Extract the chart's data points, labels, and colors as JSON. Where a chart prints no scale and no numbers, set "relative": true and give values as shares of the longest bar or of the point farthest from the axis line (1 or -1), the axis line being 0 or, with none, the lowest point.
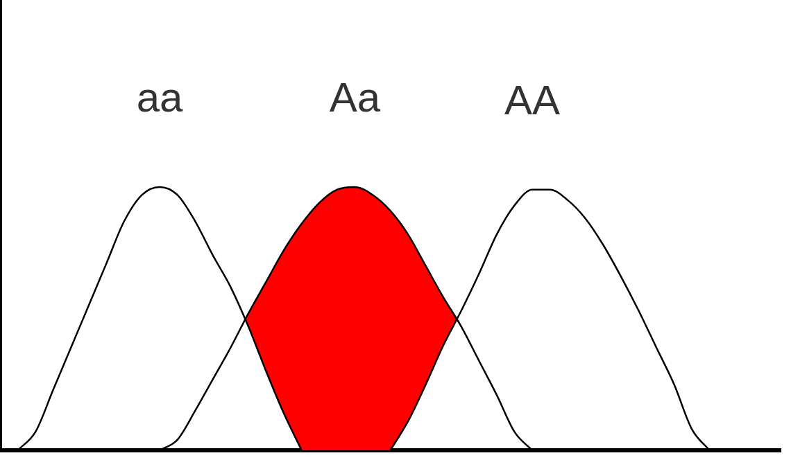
{
  "chart_data": {
    "type": "line",
    "relative": true,
    "legend": false,
    "grid": false,
    "marker": "none",
    "categories": [
      null,
      null,
      null,
      null,
      null,
      null,
      null,
      null,
      null,
      null,
      null,
      null,
      null,
      null,
      null,
      null,
      null,
      null,
      null,
      null,
      null,
      null,
      null,
      null,
      null,
      null,
      null,
      null,
      null,
      null,
      null,
      null,
      null,
      null,
      null,
      null,
      null,
      null,
      null,
      null,
      null,
      null,
      null,
      null,
      null
    ],
    "series": [
      {
        "name": "aa",
        "type": "line",
        "color": "#000000",
        "values": [
          null,
          0,
          0.07,
          0.23,
          0.39,
          0.55,
          0.71,
          0.87,
          0.97,
          1,
          0.97,
          0.87,
          0.74,
          0.62,
          0.47,
          0.3,
          0.14,
          0,
          null,
          null,
          null,
          null,
          null,
          null,
          null,
          null,
          null,
          null,
          null,
          null,
          null,
          null,
          null,
          null,
          null,
          null,
          null,
          null,
          null,
          null,
          null,
          null,
          null,
          null,
          null
        ]
      },
      {
        "name": "Aa",
        "type": "area",
        "color": "#ff0000",
        "values": [
          null,
          null,
          null,
          null,
          null,
          null,
          null,
          null,
          null,
          0,
          0.04,
          0.15,
          0.27,
          0.39,
          0.52,
          0.64,
          0.76,
          0.86,
          0.94,
          0.99,
          1,
          0.97,
          0.91,
          0.82,
          0.7,
          0.58,
          0.47,
          0.34,
          0.21,
          0.07,
          0,
          null,
          null,
          null,
          null,
          null,
          null,
          null,
          null,
          null,
          null,
          null,
          null,
          null,
          null
        ]
      },
      {
        "name": "AA",
        "type": "line",
        "color": "#000000",
        "values": [
          null,
          null,
          null,
          null,
          null,
          null,
          null,
          null,
          null,
          null,
          null,
          null,
          null,
          null,
          null,
          null,
          null,
          null,
          null,
          null,
          null,
          null,
          0,
          0.11,
          0.25,
          0.4,
          0.53,
          0.67,
          0.82,
          0.93,
          0.99,
          0.99,
          0.95,
          0.88,
          0.78,
          0.66,
          0.53,
          0.39,
          0.25,
          0.08,
          0,
          null,
          null,
          null,
          null
        ]
      }
    ]
  }
}
